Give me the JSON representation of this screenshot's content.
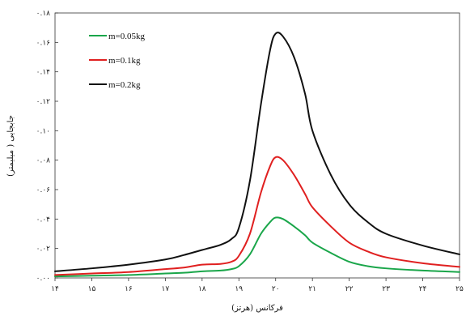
{
  "chart_data": {
    "type": "line",
    "xlabel": "فرکانس (هرتز)",
    "ylabel": "جابجایی ( میلیمتر)",
    "xlim": [
      14,
      25
    ],
    "ylim": [
      0,
      0.18
    ],
    "xticks": [
      14,
      15,
      16,
      17,
      18,
      19,
      20,
      21,
      22,
      23,
      24,
      25
    ],
    "xtick_labels": [
      "۱۴",
      "۱۵",
      "۱۶",
      "۱۷",
      "۱۸",
      "۱۹",
      "۲۰",
      "۲۱",
      "۲۲",
      "۲۳",
      "۲۴",
      "۲۵"
    ],
    "yticks": [
      0,
      0.02,
      0.04,
      0.06,
      0.08,
      0.1,
      0.12,
      0.14,
      0.16,
      0.18
    ],
    "ytick_labels": [
      "۰.۰۰",
      "۰.۰۲",
      "۰.۰۴",
      "۰.۰۶",
      "۰.۰۸",
      "۰.۱۰",
      "۰.۱۲",
      "۰.۱۴",
      "۰.۱۶",
      "۰.۱۸"
    ],
    "grid": false,
    "legend_position": "top-left",
    "x": [
      14,
      15,
      16,
      17,
      17.5,
      18,
      18.5,
      18.8,
      19,
      19.3,
      19.6,
      19.85,
      20,
      20.2,
      20.5,
      20.8,
      21,
      21.5,
      22,
      22.5,
      23,
      24,
      25
    ],
    "series": [
      {
        "name": "m=0.05kg",
        "color": "#1aa64a",
        "values": [
          0.001,
          0.0015,
          0.002,
          0.003,
          0.0035,
          0.0045,
          0.005,
          0.006,
          0.008,
          0.016,
          0.03,
          0.038,
          0.041,
          0.04,
          0.035,
          0.029,
          0.024,
          0.017,
          0.011,
          0.008,
          0.0065,
          0.005,
          0.004
        ]
      },
      {
        "name": "m=0.1kg",
        "color": "#e02020",
        "values": [
          0.002,
          0.003,
          0.004,
          0.006,
          0.007,
          0.009,
          0.0095,
          0.011,
          0.015,
          0.03,
          0.058,
          0.076,
          0.082,
          0.08,
          0.07,
          0.057,
          0.048,
          0.035,
          0.024,
          0.018,
          0.014,
          0.01,
          0.0075
        ]
      },
      {
        "name": "m=0.2kg",
        "color": "#111111",
        "values": [
          0.0045,
          0.0065,
          0.009,
          0.0125,
          0.0155,
          0.019,
          0.0225,
          0.0265,
          0.034,
          0.066,
          0.118,
          0.155,
          0.166,
          0.164,
          0.15,
          0.125,
          0.1,
          0.07,
          0.05,
          0.038,
          0.03,
          0.022,
          0.016
        ]
      }
    ]
  }
}
